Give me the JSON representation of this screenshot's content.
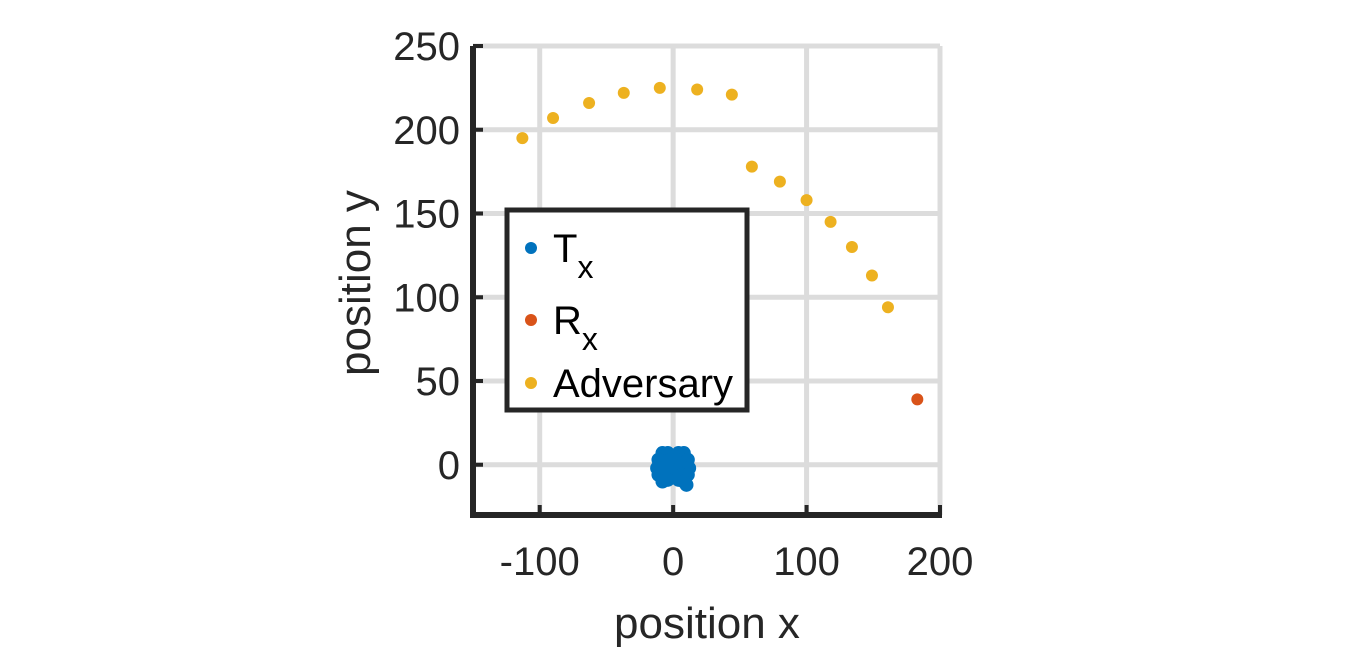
{
  "chart_data": {
    "type": "scatter",
    "title": "",
    "xlabel": "position x",
    "ylabel": "position y",
    "xlim": [
      -150,
      200
    ],
    "ylim": [
      -30,
      250
    ],
    "xticks": [
      -100,
      0,
      100,
      200
    ],
    "yticks": [
      0,
      50,
      100,
      150,
      200,
      250
    ],
    "xtick_labels": [
      "-100",
      "0",
      "100",
      "200"
    ],
    "ytick_labels": [
      "0",
      "50",
      "100",
      "150",
      "200",
      "250"
    ],
    "grid": true,
    "legend": {
      "position": "center-left",
      "boxed": true
    },
    "series": [
      {
        "name": "T",
        "name_subscript": "x",
        "color": "#0072BD",
        "points": [
          [
            -8,
            7
          ],
          [
            -4,
            7
          ],
          [
            4,
            7
          ],
          [
            8,
            7
          ],
          [
            -11,
            3
          ],
          [
            -7,
            2
          ],
          [
            -2,
            3
          ],
          [
            2,
            2
          ],
          [
            7,
            3
          ],
          [
            11,
            3
          ],
          [
            -12,
            -2
          ],
          [
            -6,
            -1
          ],
          [
            0,
            0
          ],
          [
            6,
            -1
          ],
          [
            12,
            -2
          ],
          [
            -11,
            -6
          ],
          [
            -7,
            -6
          ],
          [
            -3,
            -4
          ],
          [
            3,
            -4
          ],
          [
            7,
            -6
          ],
          [
            11,
            -6
          ],
          [
            -8,
            -10
          ],
          [
            -4,
            -9
          ],
          [
            4,
            -9
          ],
          [
            8,
            -10
          ],
          [
            10,
            -12
          ]
        ]
      },
      {
        "name": "R",
        "name_subscript": "x",
        "color": "#D95319",
        "points": [
          [
            183,
            39
          ]
        ]
      },
      {
        "name": "Adversary",
        "name_subscript": "",
        "color": "#EDB120",
        "points": [
          [
            -113,
            195
          ],
          [
            -90,
            207
          ],
          [
            -63,
            216
          ],
          [
            -37,
            222
          ],
          [
            -10,
            225
          ],
          [
            18,
            224
          ],
          [
            44,
            221
          ],
          [
            59,
            178
          ],
          [
            80,
            169
          ],
          [
            100,
            158
          ],
          [
            118,
            145
          ],
          [
            134,
            130
          ],
          [
            149,
            113
          ],
          [
            161,
            94
          ]
        ]
      }
    ]
  }
}
